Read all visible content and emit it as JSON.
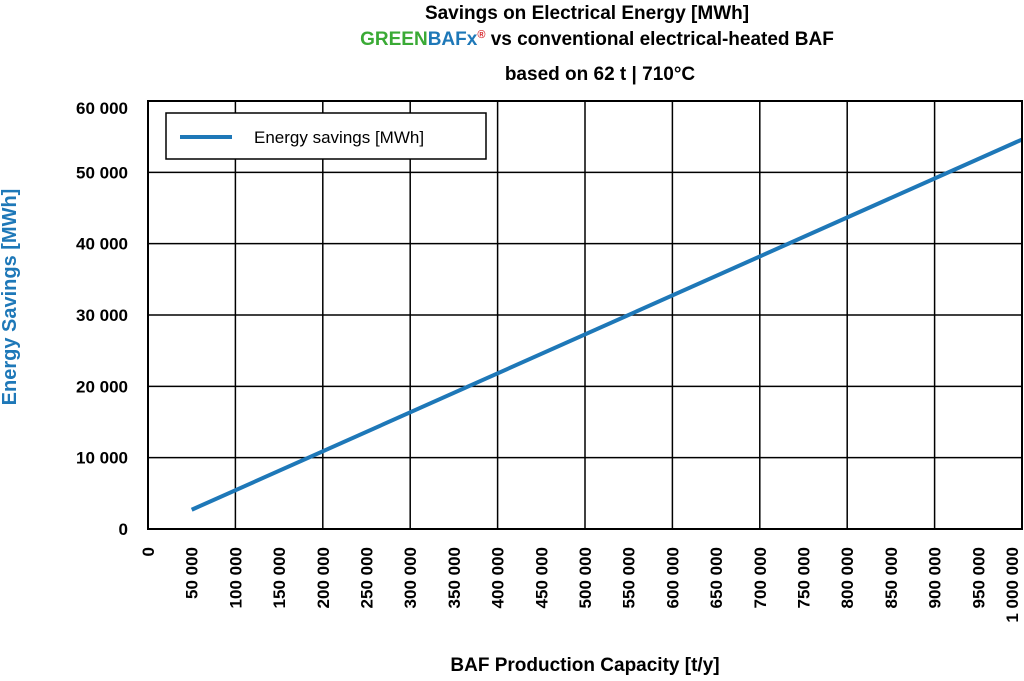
{
  "title": {
    "line1": "Savings on Electrical Energy [MWh]",
    "brand_green": "GREEN",
    "brand_blue": "BAFx",
    "brand_mark": "®",
    "line2_rest": " vs conventional electrical-heated BAF",
    "line3": "based on 62 t | 710°C"
  },
  "colors": {
    "series": "#1e78b8",
    "brand_green": "#3aaa35",
    "brand_blue": "#1e78b8",
    "brand_mark": "#d7262b",
    "ylabel": "#1e78b8",
    "grid": "#000000"
  },
  "chart_data": {
    "type": "line",
    "title": "Savings on Electrical Energy [MWh] GREENBAFx® vs conventional electrical-heated BAF — based on 62 t | 710°C",
    "xlabel": "BAF Production Capacity [t/y]",
    "ylabel": "Energy Savings [MWh]",
    "xlim": [
      0,
      1000000
    ],
    "ylim": [
      0,
      60000
    ],
    "x_ticks": [
      0,
      50000,
      100000,
      150000,
      200000,
      250000,
      300000,
      350000,
      400000,
      450000,
      500000,
      550000,
      600000,
      650000,
      700000,
      750000,
      800000,
      850000,
      900000,
      950000,
      1000000
    ],
    "x_tick_labels": [
      "0",
      "50 000",
      "100 000",
      "150 000",
      "200 000",
      "250 000",
      "300 000",
      "350 000",
      "400 000",
      "450 000",
      "500 000",
      "550 000",
      "600 000",
      "650 000",
      "700 000",
      "750 000",
      "800 000",
      "850 000",
      "900 000",
      "950 000",
      "1 000 000"
    ],
    "y_ticks": [
      0,
      10000,
      20000,
      30000,
      40000,
      50000,
      60000
    ],
    "y_tick_labels": [
      "0",
      "10 000",
      "20 000",
      "30 000",
      "40 000",
      "50 000",
      "60 000"
    ],
    "x_grid_every": 100000,
    "grid": true,
    "legend_position": "top-left",
    "series": [
      {
        "name": "Energy savings [MWh]",
        "x": [
          50000,
          1000000
        ],
        "y": [
          2700,
          54600
        ]
      }
    ]
  }
}
